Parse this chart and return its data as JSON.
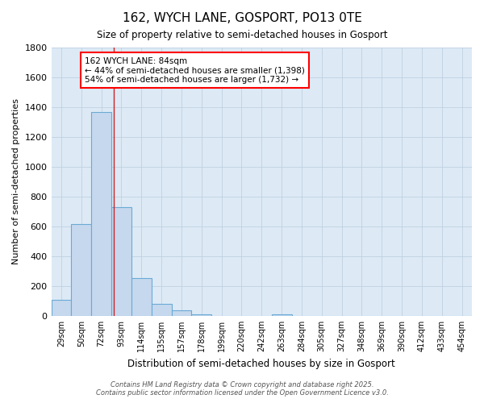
{
  "title": "162, WYCH LANE, GOSPORT, PO13 0TE",
  "subtitle": "Size of property relative to semi-detached houses in Gosport",
  "xlabel": "Distribution of semi-detached houses by size in Gosport",
  "ylabel": "Number of semi-detached properties",
  "bin_labels": [
    "29sqm",
    "50sqm",
    "72sqm",
    "93sqm",
    "114sqm",
    "135sqm",
    "157sqm",
    "178sqm",
    "199sqm",
    "220sqm",
    "242sqm",
    "263sqm",
    "284sqm",
    "305sqm",
    "327sqm",
    "348sqm",
    "369sqm",
    "390sqm",
    "412sqm",
    "433sqm",
    "454sqm"
  ],
  "bar_values": [
    110,
    615,
    1370,
    730,
    255,
    80,
    35,
    12,
    0,
    0,
    0,
    10,
    0,
    0,
    0,
    0,
    0,
    0,
    0,
    0,
    0
  ],
  "bar_color": "#c5d8ee",
  "bar_edgecolor": "#6aaad4",
  "bar_linewidth": 0.8,
  "grid_color": "#c0d0e0",
  "axes_bg_color": "#ddeaf6",
  "fig_bg_color": "#ffffff",
  "red_line_x": 2.62,
  "red_line_color": "#cc2222",
  "ylim": [
    0,
    1800
  ],
  "yticks": [
    0,
    200,
    400,
    600,
    800,
    1000,
    1200,
    1400,
    1600,
    1800
  ],
  "legend_title": "162 WYCH LANE: 84sqm",
  "legend_line1": "← 44% of semi-detached houses are smaller (1,398)",
  "legend_line2": "54% of semi-detached houses are larger (1,732) →",
  "footnote1": "Contains HM Land Registry data © Crown copyright and database right 2025.",
  "footnote2": "Contains public sector information licensed under the Open Government Licence v3.0."
}
